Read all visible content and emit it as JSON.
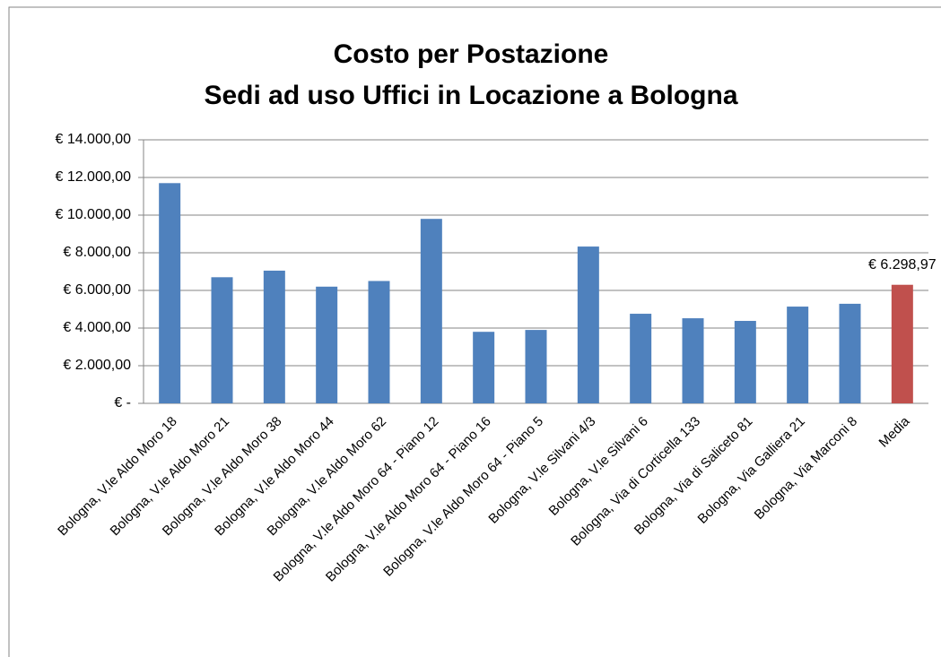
{
  "chart_data": {
    "type": "bar",
    "title": "Costo per Postazione",
    "subtitle": "Sedi ad uso Uffici in Locazione a Bologna",
    "categories": [
      "Bologna, V.le Aldo Moro 18",
      "Bologna, V.le Aldo Moro 21",
      "Bologna, V.le Aldo Moro 38",
      "Bologna, V.le Aldo Moro 44",
      "Bologna, V.le Aldo Moro 62",
      "Bologna, V.le Aldo Moro 64 - Piano 12",
      "Bologna, V.le Aldo Moro 64 - Piano 16",
      "Bologna, V.le Aldo Moro 64 - Piano 5",
      "Bologna, V.le Silvani 4/3",
      "Bologna, V.le Silvani 6",
      "Bologna, Via di Corticella 133",
      "Bologna, Via di Saliceto 81",
      "Bologna, Via Galliera 21",
      "Bologna, Via Marconi 8",
      "Media"
    ],
    "values": [
      11700,
      6700,
      7050,
      6200,
      6500,
      9800,
      3800,
      3900,
      8330,
      4760,
      4520,
      4380,
      5140,
      5290,
      6298.97
    ],
    "value_labels": [
      null,
      null,
      null,
      null,
      null,
      null,
      null,
      null,
      null,
      null,
      null,
      null,
      null,
      null,
      "€ 6.298,97"
    ],
    "colors": [
      "#4f81bd",
      "#4f81bd",
      "#4f81bd",
      "#4f81bd",
      "#4f81bd",
      "#4f81bd",
      "#4f81bd",
      "#4f81bd",
      "#4f81bd",
      "#4f81bd",
      "#4f81bd",
      "#4f81bd",
      "#4f81bd",
      "#4f81bd",
      "#c0504d"
    ],
    "ylim": [
      0,
      14000
    ],
    "yticks": [
      {
        "value": 0,
        "label": "€ -"
      },
      {
        "value": 2000,
        "label": "€ 2.000,00"
      },
      {
        "value": 4000,
        "label": "€ 4.000,00"
      },
      {
        "value": 6000,
        "label": "€ 6.000,00"
      },
      {
        "value": 8000,
        "label": "€ 8.000,00"
      },
      {
        "value": 10000,
        "label": "€ 10.000,00"
      },
      {
        "value": 12000,
        "label": "€ 12.000,00"
      },
      {
        "value": 14000,
        "label": "€ 14.000,00"
      }
    ],
    "grid": true
  }
}
